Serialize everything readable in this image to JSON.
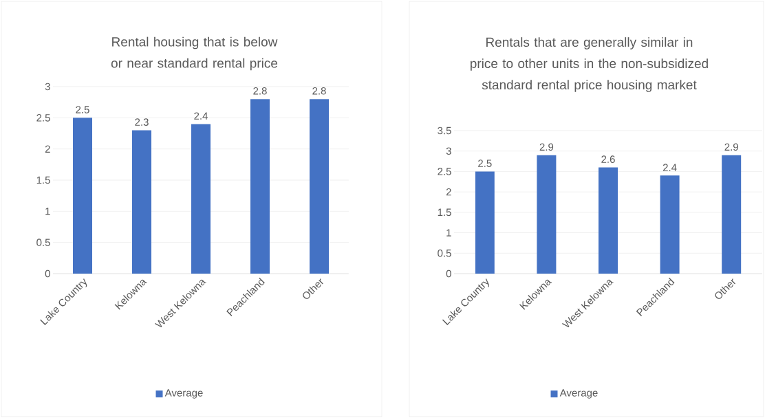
{
  "chart_data": [
    {
      "type": "bar",
      "title": "Rental housing that is below or near standard rental price",
      "categories": [
        "Lake Country",
        "Kelowna",
        "West Kelowna",
        "Peachland",
        "Other"
      ],
      "series": [
        {
          "name": "Average",
          "color": "#4472c4",
          "values": [
            2.5,
            2.3,
            2.4,
            2.8,
            2.8
          ]
        }
      ],
      "ylim": [
        0,
        3
      ],
      "yticks": [
        0,
        0.5,
        1,
        1.5,
        2,
        2.5,
        3
      ],
      "grid": "y",
      "legend": "bottom",
      "data_labels": true
    },
    {
      "type": "bar",
      "title": "Rentals that are generally similar in price to other units in the non-subsidized standard rental price housing market",
      "categories": [
        "Lake Country",
        "Kelowna",
        "West Kelowna",
        "Peachland",
        "Other"
      ],
      "series": [
        {
          "name": "Average",
          "color": "#4472c4",
          "values": [
            2.5,
            2.9,
            2.6,
            2.4,
            2.9
          ]
        }
      ],
      "ylim": [
        0,
        3.5
      ],
      "yticks": [
        0,
        0.5,
        1,
        1.5,
        2,
        2.5,
        3,
        3.5
      ],
      "grid": "y",
      "legend": "bottom",
      "data_labels": true
    }
  ]
}
